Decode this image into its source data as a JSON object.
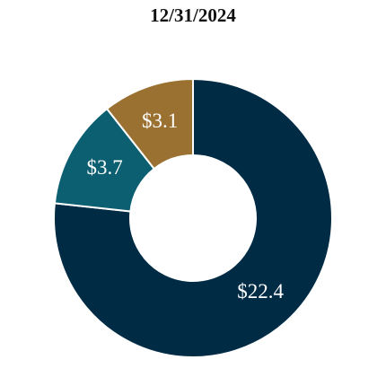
{
  "chart_data": {
    "type": "donut",
    "title": "12/31/2024",
    "values": [
      22.4,
      3.7,
      3.1
    ],
    "value_labels": [
      "$22.4",
      "$3.7",
      "$3.1"
    ],
    "colors": [
      "#002b45",
      "#0c5f70",
      "#9b7132"
    ]
  }
}
